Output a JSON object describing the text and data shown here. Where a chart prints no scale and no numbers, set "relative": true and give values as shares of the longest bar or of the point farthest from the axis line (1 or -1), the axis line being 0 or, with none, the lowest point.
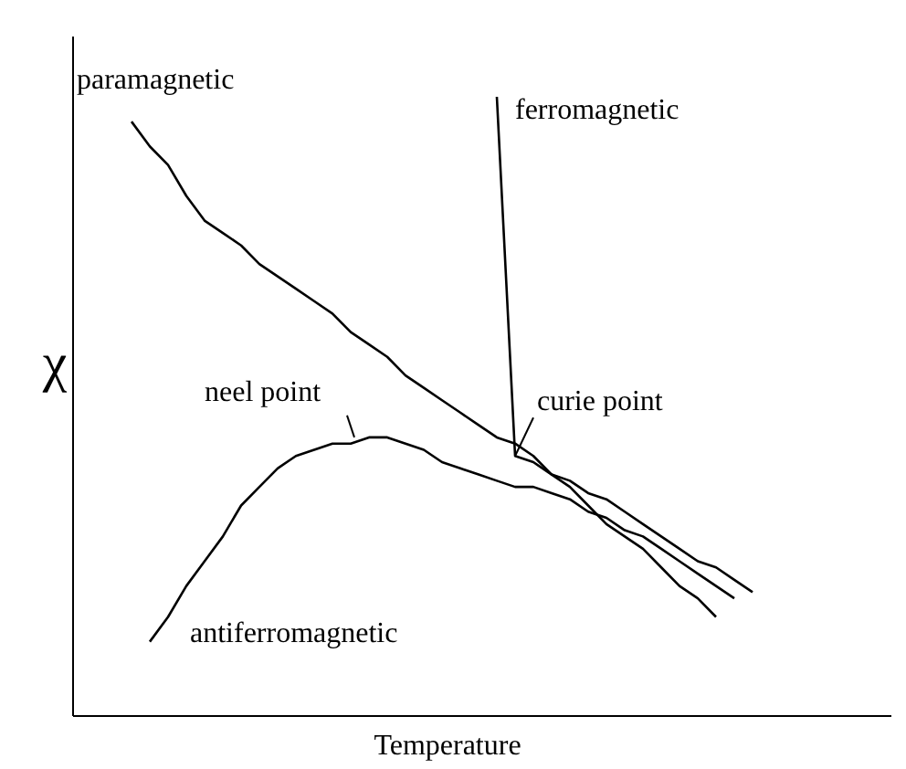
{
  "chart_data": {
    "type": "line",
    "relative": true,
    "xlabel": "Temperature",
    "ylabel": "χ",
    "line_style": "solid",
    "categories": [
      null,
      null,
      null,
      null,
      null,
      null,
      null,
      null,
      null,
      null,
      null,
      null,
      null,
      null,
      null,
      null,
      null,
      null,
      null,
      null,
      null,
      null,
      null,
      null,
      null,
      null,
      null,
      null,
      null,
      null,
      null,
      null,
      null,
      null,
      null
    ],
    "series": [
      {
        "name": "paramagnetic",
        "color": "#000000",
        "values": [
          0.96,
          0.92,
          0.89,
          0.84,
          0.8,
          0.78,
          0.76,
          0.73,
          0.71,
          0.69,
          0.67,
          0.65,
          0.62,
          0.6,
          0.58,
          0.55,
          0.53,
          0.51,
          0.49,
          0.47,
          0.45,
          0.44,
          0.42,
          0.39,
          0.37,
          0.34,
          0.31,
          0.29,
          0.27,
          0.24,
          0.21,
          0.19,
          0.16,
          null,
          null
        ]
      },
      {
        "name": "ferromagnetic",
        "color": "#000000",
        "values": [
          null,
          null,
          null,
          null,
          null,
          null,
          null,
          null,
          null,
          null,
          null,
          null,
          null,
          null,
          null,
          null,
          null,
          null,
          null,
          null,
          1,
          0.42,
          0.41,
          0.39,
          0.38,
          0.36,
          0.35,
          0.33,
          0.31,
          0.29,
          0.27,
          0.25,
          0.24,
          0.22,
          0.2
        ]
      },
      {
        "name": "antiferromagnetic",
        "color": "#000000",
        "values": [
          null,
          0.12,
          0.16,
          0.21,
          0.25,
          0.29,
          0.34,
          0.37,
          0.4,
          0.42,
          0.43,
          0.44,
          0.44,
          0.45,
          0.45,
          0.44,
          0.43,
          0.41,
          0.4,
          0.39,
          0.38,
          0.37,
          0.37,
          0.36,
          0.35,
          0.33,
          0.32,
          0.3,
          0.29,
          0.27,
          0.25,
          0.23,
          0.21,
          0.19,
          null
        ]
      }
    ],
    "annotations": [
      "neel point",
      "curie point"
    ]
  }
}
